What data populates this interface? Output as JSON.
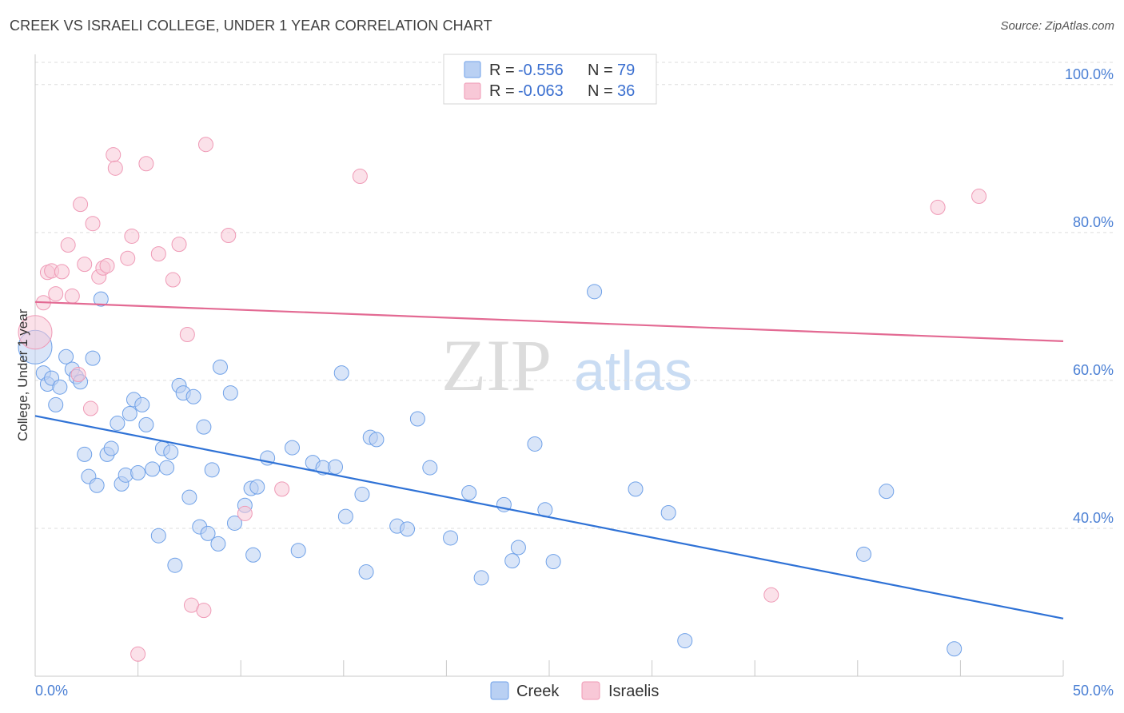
{
  "title": "CREEK VS ISRAELI COLLEGE, UNDER 1 YEAR CORRELATION CHART",
  "source": "Source: ZipAtlas.com",
  "watermark": {
    "zip": "ZIP",
    "atlas": "atlas"
  },
  "chart_data": {
    "type": "scatter",
    "xlabel": "",
    "ylabel": "College, Under 1 year",
    "xlim": [
      0,
      50
    ],
    "ylim": [
      20,
      103
    ],
    "x_tick_labels": [
      "0.0%",
      "50.0%"
    ],
    "y_ticks": [
      40,
      60,
      80,
      100
    ],
    "y_tick_labels": [
      "40.0%",
      "60.0%",
      "80.0%",
      "100.0%"
    ],
    "grid": true,
    "legend": {
      "placement": "top-center",
      "entries": [
        {
          "r_label": "R =",
          "r_value": "-0.556",
          "n_label": "N =",
          "n_value": "79"
        },
        {
          "r_label": "R =",
          "r_value": "-0.063",
          "n_label": "N =",
          "n_value": "36"
        }
      ]
    },
    "series": [
      {
        "name": "Creek",
        "color": "#6fa1e8",
        "fill": "#b9d0f3",
        "line_color": "#2f72d6",
        "trend": {
          "x": [
            0,
            50
          ],
          "y": [
            55.2,
            27.8
          ]
        },
        "points": [
          [
            0.0,
            64.5
          ],
          [
            0.4,
            61.0
          ],
          [
            0.6,
            59.5
          ],
          [
            0.8,
            60.3
          ],
          [
            1.0,
            56.7
          ],
          [
            1.2,
            59.1
          ],
          [
            1.5,
            63.2
          ],
          [
            1.8,
            61.5
          ],
          [
            2.0,
            60.5
          ],
          [
            2.2,
            59.8
          ],
          [
            2.4,
            50.0
          ],
          [
            2.6,
            47.0
          ],
          [
            2.8,
            63.0
          ],
          [
            3.0,
            45.8
          ],
          [
            3.2,
            71.0
          ],
          [
            3.5,
            50.0
          ],
          [
            3.7,
            50.8
          ],
          [
            4.0,
            54.2
          ],
          [
            4.2,
            46.0
          ],
          [
            4.4,
            47.2
          ],
          [
            4.6,
            55.5
          ],
          [
            4.8,
            57.4
          ],
          [
            5.0,
            47.5
          ],
          [
            5.2,
            56.7
          ],
          [
            5.4,
            54.0
          ],
          [
            5.7,
            48.0
          ],
          [
            6.0,
            39.0
          ],
          [
            6.2,
            50.8
          ],
          [
            6.4,
            48.2
          ],
          [
            6.6,
            50.3
          ],
          [
            6.8,
            35.0
          ],
          [
            7.0,
            59.3
          ],
          [
            7.2,
            58.3
          ],
          [
            7.5,
            44.2
          ],
          [
            7.7,
            57.8
          ],
          [
            8.0,
            40.2
          ],
          [
            8.2,
            53.7
          ],
          [
            8.4,
            39.3
          ],
          [
            8.6,
            47.9
          ],
          [
            8.9,
            37.9
          ],
          [
            9.0,
            61.8
          ],
          [
            9.5,
            58.3
          ],
          [
            9.7,
            40.7
          ],
          [
            10.2,
            43.1
          ],
          [
            10.5,
            45.4
          ],
          [
            10.6,
            36.4
          ],
          [
            10.8,
            45.6
          ],
          [
            11.3,
            49.5
          ],
          [
            12.5,
            50.9
          ],
          [
            12.8,
            37.0
          ],
          [
            13.5,
            48.9
          ],
          [
            14.0,
            48.2
          ],
          [
            14.6,
            48.3
          ],
          [
            14.9,
            61.0
          ],
          [
            15.1,
            41.6
          ],
          [
            15.9,
            44.6
          ],
          [
            16.1,
            34.1
          ],
          [
            16.3,
            52.3
          ],
          [
            16.6,
            52.0
          ],
          [
            17.6,
            40.3
          ],
          [
            18.1,
            39.9
          ],
          [
            18.6,
            54.8
          ],
          [
            19.2,
            48.2
          ],
          [
            20.2,
            38.7
          ],
          [
            21.1,
            44.8
          ],
          [
            21.7,
            33.3
          ],
          [
            22.8,
            43.2
          ],
          [
            23.2,
            35.6
          ],
          [
            23.5,
            37.4
          ],
          [
            24.3,
            51.4
          ],
          [
            24.8,
            42.5
          ],
          [
            25.2,
            35.5
          ],
          [
            27.2,
            72.0
          ],
          [
            29.2,
            45.3
          ],
          [
            30.8,
            42.1
          ],
          [
            31.6,
            24.8
          ],
          [
            40.3,
            36.5
          ],
          [
            41.4,
            45.0
          ],
          [
            44.7,
            23.7
          ]
        ]
      },
      {
        "name": "Israelis",
        "color": "#ef9ab6",
        "fill": "#f8c8d7",
        "line_color": "#e36a93",
        "trend": {
          "x": [
            0,
            50
          ],
          "y": [
            70.6,
            65.3
          ]
        },
        "points": [
          [
            0.0,
            66.5
          ],
          [
            0.4,
            70.5
          ],
          [
            0.6,
            74.6
          ],
          [
            0.8,
            74.8
          ],
          [
            1.0,
            71.7
          ],
          [
            1.3,
            74.7
          ],
          [
            1.6,
            78.3
          ],
          [
            1.8,
            71.4
          ],
          [
            2.1,
            60.8
          ],
          [
            2.2,
            83.8
          ],
          [
            2.4,
            75.7
          ],
          [
            2.7,
            56.2
          ],
          [
            2.8,
            81.2
          ],
          [
            3.1,
            74.0
          ],
          [
            3.3,
            75.2
          ],
          [
            3.5,
            75.5
          ],
          [
            3.8,
            90.5
          ],
          [
            3.9,
            88.7
          ],
          [
            4.5,
            76.5
          ],
          [
            4.7,
            79.5
          ],
          [
            5.0,
            23.0
          ],
          [
            5.4,
            89.3
          ],
          [
            6.0,
            77.1
          ],
          [
            6.7,
            73.6
          ],
          [
            7.0,
            78.4
          ],
          [
            7.4,
            66.2
          ],
          [
            7.6,
            29.6
          ],
          [
            8.2,
            28.9
          ],
          [
            8.3,
            91.9
          ],
          [
            9.4,
            79.6
          ],
          [
            10.2,
            42.0
          ],
          [
            12.0,
            45.3
          ],
          [
            15.8,
            87.6
          ],
          [
            35.8,
            31.0
          ],
          [
            43.9,
            83.4
          ],
          [
            45.9,
            84.9
          ]
        ]
      }
    ]
  },
  "bottom_legend": [
    "Creek",
    "Israelis"
  ]
}
